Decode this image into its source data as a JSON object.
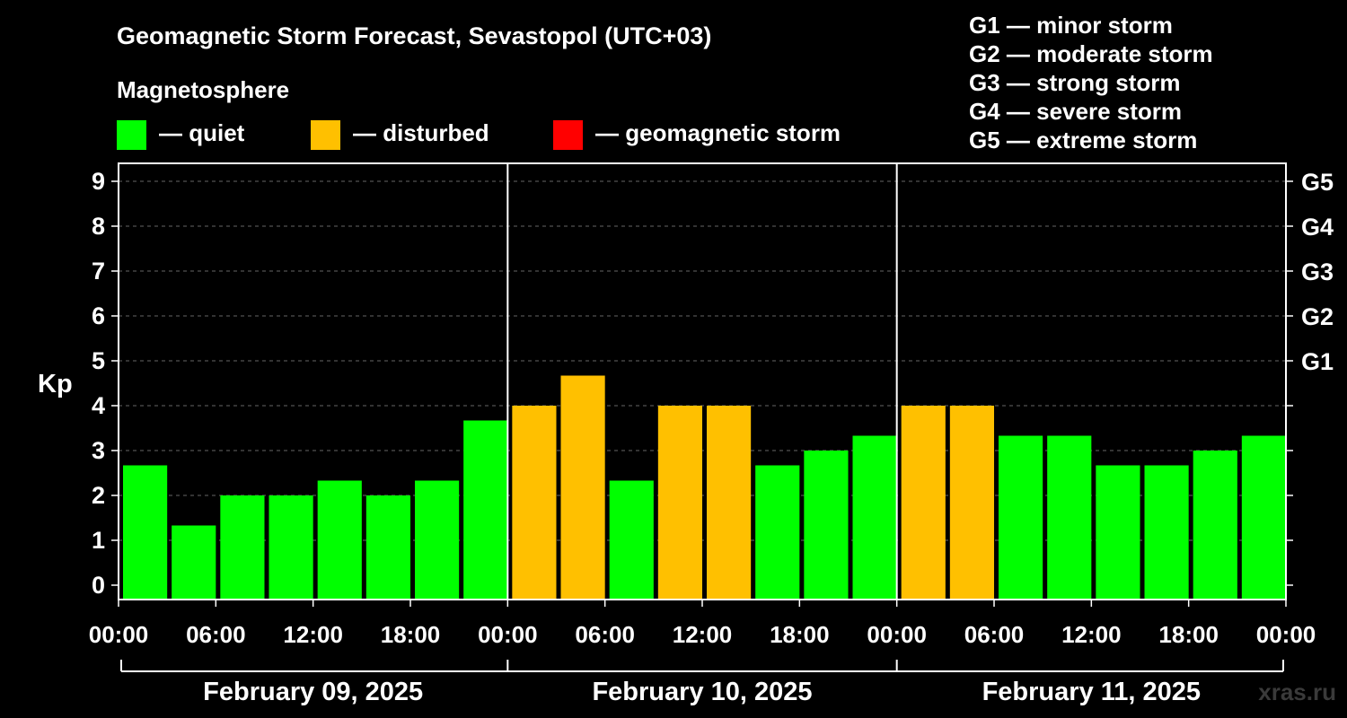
{
  "header": {
    "title": "Geomagnetic Storm Forecast, Sevastopol (UTC+03)",
    "subtitle": "Magnetosphere"
  },
  "legend": {
    "items": [
      {
        "label": "— quiet",
        "color": "#00ff00"
      },
      {
        "label": "— disturbed",
        "color": "#ffc000"
      },
      {
        "label": "— geomagnetic storm",
        "color": "#ff0000"
      }
    ]
  },
  "storm_scale": [
    "G1 — minor storm",
    "G2 — moderate storm",
    "G3 — strong storm",
    "G4 — severe storm",
    "G5 — extreme storm"
  ],
  "watermark": "xras.ru",
  "chart_data": {
    "type": "bar",
    "ylabel": "Kp",
    "ylim": [
      0,
      9
    ],
    "yticks": [
      "0",
      "1",
      "2",
      "3",
      "4",
      "5",
      "6",
      "7",
      "8",
      "9"
    ],
    "right_ticks": [
      {
        "kp": 5,
        "label": "G1"
      },
      {
        "kp": 6,
        "label": "G2"
      },
      {
        "kp": 7,
        "label": "G3"
      },
      {
        "kp": 8,
        "label": "G4"
      },
      {
        "kp": 9,
        "label": "G5"
      }
    ],
    "grid": "dashed horizontal",
    "xticks": [
      "00:00",
      "06:00",
      "12:00",
      "18:00",
      "00:00",
      "06:00",
      "12:00",
      "18:00",
      "00:00",
      "06:00",
      "12:00",
      "18:00",
      "00:00"
    ],
    "days": [
      "February 09, 2025",
      "February 10, 2025",
      "February 11, 2025"
    ],
    "values": [
      2.67,
      1.33,
      2.0,
      2.0,
      2.33,
      2.0,
      2.33,
      3.67,
      4.0,
      4.67,
      2.33,
      4.0,
      4.0,
      2.67,
      3.0,
      3.33,
      4.0,
      4.0,
      3.33,
      3.33,
      2.67,
      2.67,
      3.0,
      3.33
    ],
    "status": [
      "quiet",
      "quiet",
      "quiet",
      "quiet",
      "quiet",
      "quiet",
      "quiet",
      "quiet",
      "disturbed",
      "disturbed",
      "quiet",
      "disturbed",
      "disturbed",
      "quiet",
      "quiet",
      "quiet",
      "disturbed",
      "disturbed",
      "quiet",
      "quiet",
      "quiet",
      "quiet",
      "quiet",
      "quiet"
    ],
    "colors": {
      "quiet": "#00ff00",
      "disturbed": "#ffc000",
      "storm": "#ff0000"
    }
  }
}
